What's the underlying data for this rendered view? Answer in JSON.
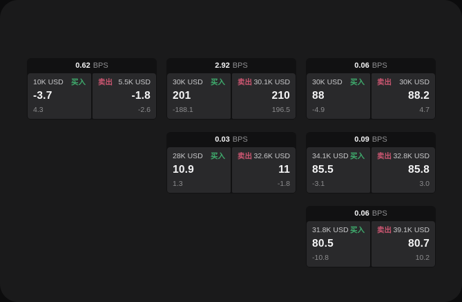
{
  "page": {
    "outer_background": "#0c0c0d",
    "panel_background": "#1a1a1b",
    "card_background": "#111112",
    "subcard_background": "#29292b"
  },
  "colors": {
    "buy": "#3fab6d",
    "sell": "#cb5671"
  },
  "labels": {
    "bps": "BPS",
    "buy": "买入",
    "sell": "卖出"
  },
  "cards": [
    {
      "bps": "0.62",
      "buy": {
        "amount": "10K USD",
        "value": "-3.7",
        "sub": "4.3"
      },
      "sell": {
        "amount": "5.5K USD",
        "value": "-1.8",
        "sub": "-2.6"
      }
    },
    {
      "bps": "2.92",
      "buy": {
        "amount": "30K USD",
        "value": "201",
        "sub": "-188.1"
      },
      "sell": {
        "amount": "30.1K USD",
        "value": "210",
        "sub": "196.5"
      }
    },
    {
      "bps": "0.06",
      "buy": {
        "amount": "30K USD",
        "value": "88",
        "sub": "-4.9"
      },
      "sell": {
        "amount": "30K USD",
        "value": "88.2",
        "sub": "4.7"
      }
    },
    {
      "bps": "0.03",
      "buy": {
        "amount": "28K USD",
        "value": "10.9",
        "sub": "1.3"
      },
      "sell": {
        "amount": "32.6K USD",
        "value": "11",
        "sub": "-1.8"
      }
    },
    {
      "bps": "0.09",
      "buy": {
        "amount": "34.1K USD",
        "value": "85.5",
        "sub": "-3.1"
      },
      "sell": {
        "amount": "32.8K USD",
        "value": "85.8",
        "sub": "3.0"
      }
    },
    {
      "bps": "0.06",
      "buy": {
        "amount": "31.8K USD",
        "value": "80.5",
        "sub": "-10.8"
      },
      "sell": {
        "amount": "39.1K USD",
        "value": "80.7",
        "sub": "10.2"
      }
    }
  ]
}
